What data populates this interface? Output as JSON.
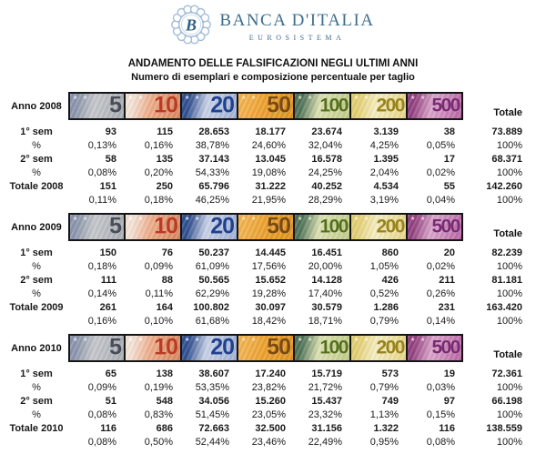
{
  "logo": {
    "bank_name": "BANCA D'ITALIA",
    "eurosystem": "EUROSISTEMA",
    "monogram": "B",
    "text_color": "#3e6e8e",
    "ring_color": "#a3bdd6"
  },
  "title": "ANDAMENTO DELLE FALSIFICAZIONI NEGLI ULTIMI ANNI",
  "subtitle": "Numero di esemplari e composizione percentuale per taglio",
  "totale_label": "Totale",
  "denominations": [
    {
      "value": "5",
      "corner": "#8b95ac",
      "light": "#c6c8cb",
      "mid": "#a8acb2",
      "num": "#484e57",
      "stars": "#eceef2"
    },
    {
      "value": "10",
      "corner": "#f5e3d6",
      "light": "#eead8b",
      "mid": "#d8845c",
      "num": "#bb3a22",
      "stars": "#ffffff"
    },
    {
      "value": "20",
      "corner": "#31508f",
      "light": "#c9d2e8",
      "mid": "#9fb0d6",
      "num": "#21418f",
      "stars": "#eff2fa"
    },
    {
      "value": "50",
      "corner": "#f2b24e",
      "light": "#eda22f",
      "mid": "#e2931c",
      "num": "#7b4a10",
      "stars": "#fbeccb"
    },
    {
      "value": "100",
      "corner": "#4e7257",
      "light": "#dde2b2",
      "mid": "#bfcb87",
      "num": "#55701d",
      "stars": "#eef2da"
    },
    {
      "value": "200",
      "corner": "#e3cf72",
      "light": "#f6eec2",
      "mid": "#e7d584",
      "num": "#98831b",
      "stars": "#fdf8e2"
    },
    {
      "value": "500",
      "corner": "#93417f",
      "light": "#dba5cc",
      "mid": "#b964a4",
      "num": "#782a72",
      "stars": "#f5e0f1"
    }
  ],
  "sections": [
    {
      "year_label": "Anno 2008",
      "rows": [
        {
          "label": "1° sem",
          "bold": true,
          "values": [
            "93",
            "115",
            "28.653",
            "18.177",
            "23.674",
            "3.139",
            "38",
            "73.889"
          ]
        },
        {
          "label": "%",
          "bold": false,
          "values": [
            "0,13%",
            "0,16%",
            "38,78%",
            "24,60%",
            "32,04%",
            "4,25%",
            "0,05%",
            "100%"
          ]
        },
        {
          "label": "2° sem",
          "bold": true,
          "values": [
            "58",
            "135",
            "37.143",
            "13.045",
            "16.578",
            "1.395",
            "17",
            "68.371"
          ]
        },
        {
          "label": "%",
          "bold": false,
          "values": [
            "0,08%",
            "0,20%",
            "54,33%",
            "19,08%",
            "24,25%",
            "2,04%",
            "0,02%",
            "100%"
          ]
        },
        {
          "label": "Totale 2008",
          "bold": true,
          "values": [
            "151",
            "250",
            "65.796",
            "31.222",
            "40.252",
            "4.534",
            "55",
            "142.260"
          ]
        },
        {
          "label": "",
          "bold": false,
          "values": [
            "0,11%",
            "0,18%",
            "46,25%",
            "21,95%",
            "28,29%",
            "3,19%",
            "0,04%",
            "100%"
          ]
        }
      ]
    },
    {
      "year_label": "Anno 2009",
      "rows": [
        {
          "label": "1° sem",
          "bold": true,
          "values": [
            "150",
            "76",
            "50.237",
            "14.445",
            "16.451",
            "860",
            "20",
            "82.239"
          ]
        },
        {
          "label": "%",
          "bold": false,
          "values": [
            "0,18%",
            "0,09%",
            "61,09%",
            "17,56%",
            "20,00%",
            "1,05%",
            "0,02%",
            "100%"
          ]
        },
        {
          "label": "2° sem",
          "bold": true,
          "values": [
            "111",
            "88",
            "50.565",
            "15.652",
            "14.128",
            "426",
            "211",
            "81.181"
          ]
        },
        {
          "label": "%",
          "bold": false,
          "values": [
            "0,14%",
            "0,11%",
            "62,29%",
            "19,28%",
            "17,40%",
            "0,52%",
            "0,26%",
            "100%"
          ]
        },
        {
          "label": "Totale 2009",
          "bold": true,
          "values": [
            "261",
            "164",
            "100.802",
            "30.097",
            "30.579",
            "1.286",
            "231",
            "163.420"
          ]
        },
        {
          "label": "",
          "bold": false,
          "values": [
            "0,16%",
            "0,10%",
            "61,68%",
            "18,42%",
            "18,71%",
            "0,79%",
            "0,14%",
            "100%"
          ]
        }
      ]
    },
    {
      "year_label": "Anno 2010",
      "rows": [
        {
          "label": "1° sem",
          "bold": true,
          "values": [
            "65",
            "138",
            "38.607",
            "17.240",
            "15.719",
            "573",
            "19",
            "72.361"
          ]
        },
        {
          "label": "%",
          "bold": false,
          "values": [
            "0,09%",
            "0,19%",
            "53,35%",
            "23,82%",
            "21,72%",
            "0,79%",
            "0,03%",
            "100%"
          ]
        },
        {
          "label": "2° sem",
          "bold": true,
          "values": [
            "51",
            "548",
            "34.056",
            "15.260",
            "15.437",
            "749",
            "97",
            "66.198"
          ]
        },
        {
          "label": "%",
          "bold": false,
          "values": [
            "0,08%",
            "0,83%",
            "51,45%",
            "23,05%",
            "23,32%",
            "1,13%",
            "0,15%",
            "100%"
          ]
        },
        {
          "label": "Totale 2010",
          "bold": true,
          "values": [
            "116",
            "686",
            "72.663",
            "32.500",
            "31.156",
            "1.322",
            "116",
            "138.559"
          ]
        },
        {
          "label": "",
          "bold": false,
          "values": [
            "0,08%",
            "0,50%",
            "52,44%",
            "23,46%",
            "22,49%",
            "0,95%",
            "0,08%",
            "100%"
          ]
        }
      ]
    }
  ]
}
